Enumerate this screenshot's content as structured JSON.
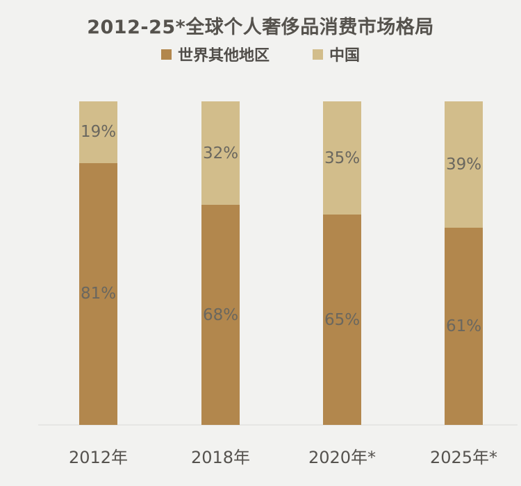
{
  "chart_data": {
    "type": "bar",
    "stacked": true,
    "title": "2012-25*全球个人奢侈品消费市场格局",
    "categories": [
      "2012年",
      "2018年",
      "2020年*",
      "2025年*"
    ],
    "series": [
      {
        "name": "世界其他地区",
        "values": [
          81,
          68,
          65,
          61
        ],
        "labels": [
          "81%",
          "68%",
          "65%",
          "61%"
        ],
        "color": "#B2874D",
        "stack_position": "bottom"
      },
      {
        "name": "中国",
        "values": [
          19,
          32,
          35,
          39
        ],
        "labels": [
          "19%",
          "32%",
          "35%",
          "39%"
        ],
        "color": "#D2BD8B",
        "stack_position": "top"
      }
    ],
    "unit": "%",
    "ylim": [
      0,
      100
    ],
    "legend_position": "top",
    "grid": false,
    "background_color": "#F2F2F0",
    "title_color": "#55524D",
    "legend_text_color": "#504D49",
    "segment_label_color": "#6A675F",
    "axis_label_color": "#55524E",
    "axis_line_color": "#E6E6E4"
  }
}
